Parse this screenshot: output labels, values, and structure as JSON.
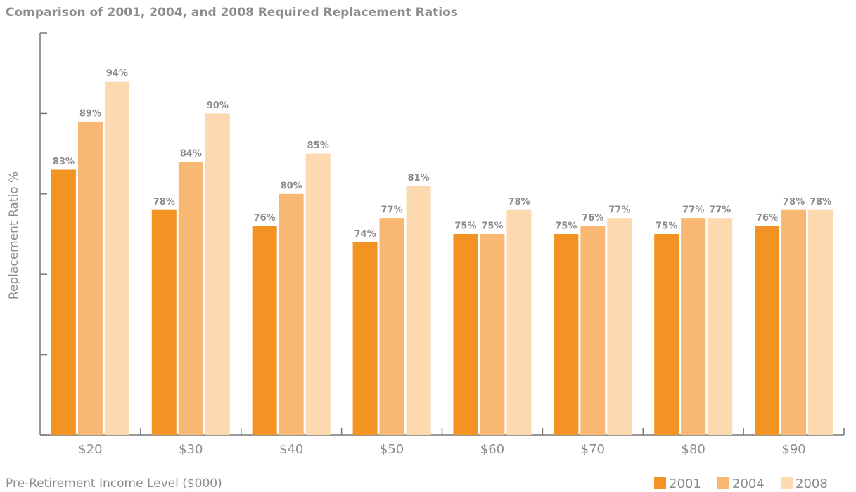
{
  "chart_data": {
    "type": "bar",
    "title": "Comparison of 2001, 2004, and 2008 Required Replacement Ratios",
    "x_label": "Pre-Retirement Income Level ($000)",
    "y_label": "Replacement Ratio %",
    "categories": [
      "$20",
      "$30",
      "$40",
      "$50",
      "$60",
      "$70",
      "$80",
      "$90"
    ],
    "series": [
      {
        "name": "2001",
        "color": "#f39323",
        "values": [
          83,
          78,
          76,
          74,
          75,
          75,
          75,
          76
        ],
        "value_labels": [
          "83%",
          "78%",
          "76%",
          "74%",
          "75%",
          "75%",
          "75%",
          "76%"
        ]
      },
      {
        "name": "2004",
        "color": "#f9b774",
        "values": [
          89,
          84,
          80,
          77,
          75,
          76,
          77,
          78
        ],
        "value_labels": [
          "89%",
          "84%",
          "80%",
          "77%",
          "75%",
          "76%",
          "77%",
          "78%"
        ]
      },
      {
        "name": "2008",
        "color": "#fdd9b0",
        "values": [
          94,
          90,
          85,
          81,
          78,
          77,
          77,
          78
        ],
        "value_labels": [
          "94%",
          "90%",
          "85%",
          "81%",
          "78%",
          "77%",
          "77%",
          "78%"
        ]
      }
    ],
    "ylim": [
      50,
      100
    ],
    "yticks": [
      50,
      60,
      70,
      80,
      90,
      100
    ],
    "legend": "bottom-right"
  }
}
